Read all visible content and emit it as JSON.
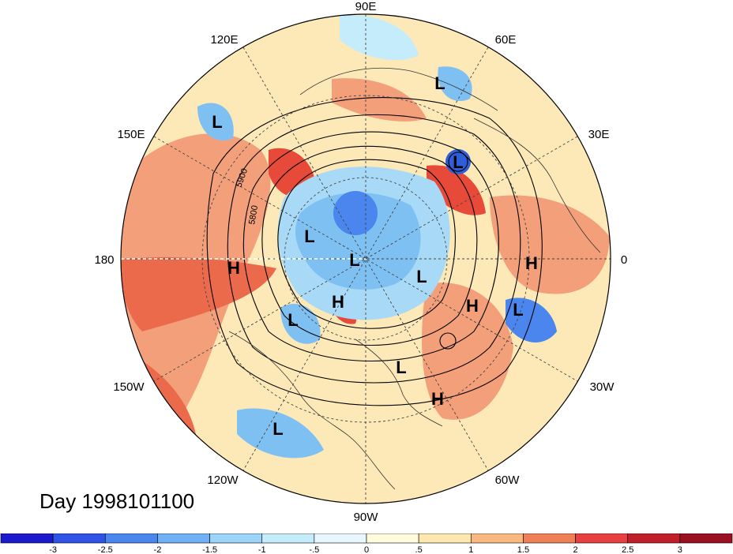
{
  "title": "Day 1998101100",
  "longitude_labels": {
    "e90": "90E",
    "e60": "60E",
    "e30": "30E",
    "zero": "0",
    "w30": "30W",
    "w60": "60W",
    "w90": "90W",
    "w120": "120W",
    "w150": "150W",
    "d180": "180",
    "e150": "150E",
    "e120": "120E"
  },
  "contour_labels": {
    "c5900": "5900",
    "c5800": "5800"
  },
  "pressure_centers": [
    {
      "label": "L",
      "region": "western-pacific"
    },
    {
      "label": "L",
      "region": "eurasia-north"
    },
    {
      "label": "L",
      "region": "ural"
    },
    {
      "label": "L",
      "region": "arctic-siberia"
    },
    {
      "label": "L",
      "region": "north-pole"
    },
    {
      "label": "L",
      "region": "greenland-sea"
    },
    {
      "label": "L",
      "region": "north-atlantic-east"
    },
    {
      "label": "L",
      "region": "alaska"
    },
    {
      "label": "L",
      "region": "east-pacific"
    },
    {
      "label": "L",
      "region": "hudson-bay-south"
    },
    {
      "label": "H",
      "region": "north-pacific"
    },
    {
      "label": "H",
      "region": "europe"
    },
    {
      "label": "H",
      "region": "north-atlantic"
    },
    {
      "label": "H",
      "region": "canada-arctic"
    },
    {
      "label": "H",
      "region": "subtropical-atlantic"
    }
  ],
  "colorbar": {
    "tick_labels": [
      "-3",
      "-2.5",
      "-2",
      "-1.5",
      "-1",
      "-.5",
      "0",
      ".5",
      "1",
      "1.5",
      "2",
      "2.5",
      "3"
    ],
    "colors": [
      "#1a1acc",
      "#2f53e6",
      "#4a86ee",
      "#70b0f5",
      "#9cd3f8",
      "#c5ecfb",
      "#e8f7fd",
      "#fffbdc",
      "#fde7ae",
      "#f8b880",
      "#f08058",
      "#e84040",
      "#c01f2a",
      "#9a1020"
    ]
  },
  "colors": {
    "warm_strong": "#e64a3a",
    "warm": "#f39a72",
    "warm_light": "#fad7a8",
    "neutral": "#fdf1cc",
    "cool_light": "#c5ecfb",
    "cool": "#7fc0f3",
    "cool_strong": "#2f5fd8"
  }
}
